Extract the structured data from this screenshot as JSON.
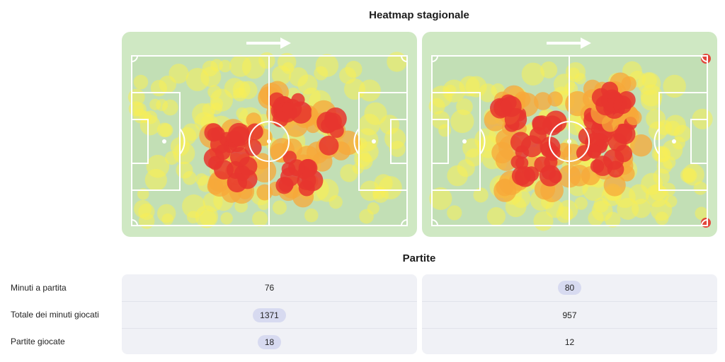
{
  "heatmap": {
    "title": "Heatmap stagionale",
    "colors": {
      "pitch": "#cfe8c3",
      "inner": "#c2dfb5",
      "line": "#ffffff",
      "low": "#f7ee55",
      "mid": "#f7a83a",
      "high": "#e6352e"
    }
  },
  "matches": {
    "title": "Partite",
    "rows": [
      {
        "label": "Minuti a partita",
        "left": "76",
        "right": "80",
        "highlight": "right"
      },
      {
        "label": "Totale dei minuti giocati",
        "left": "1371",
        "right": "957",
        "highlight": "left"
      },
      {
        "label": "Partite giocate",
        "left": "18",
        "right": "12",
        "highlight": "left"
      }
    ],
    "highlight_color": "#d7daf0"
  }
}
